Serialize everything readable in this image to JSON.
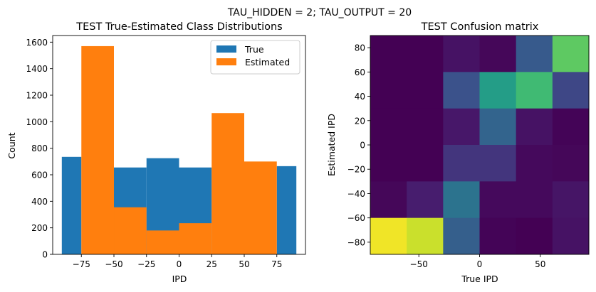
{
  "figure": {
    "suptitle": "TAU_HIDDEN = 2; TAU_OUTPUT = 20"
  },
  "chart_data": [
    {
      "type": "bar",
      "title": "TEST True-Estimated Class Distributions",
      "xlabel": "IPD",
      "ylabel": "Count",
      "xlim": [
        -97,
        97
      ],
      "ylim": [
        0,
        1650
      ],
      "xticks": [
        -75,
        -50,
        -25,
        0,
        25,
        50,
        75
      ],
      "xtick_labels": [
        "−75",
        "−50",
        "−25",
        "0",
        "25",
        "50",
        "75"
      ],
      "yticks": [
        0,
        200,
        400,
        600,
        800,
        1000,
        1200,
        1400,
        1600
      ],
      "ytick_labels": [
        "0",
        "200",
        "400",
        "600",
        "800",
        "1000",
        "1200",
        "1400",
        "1600"
      ],
      "legend_position": "top-right",
      "series": [
        {
          "name": "True",
          "color": "#1f77b4",
          "bin_edges": [
            -90,
            -75,
            -50,
            -25,
            0,
            25,
            50,
            75,
            90
          ],
          "values": [
            735,
            0,
            655,
            725,
            655,
            0,
            0,
            665
          ]
        },
        {
          "name": "Estimated",
          "color": "#ff7f0e",
          "bin_edges": [
            -75,
            -50,
            -25,
            0,
            25,
            50,
            75
          ],
          "values": [
            1570,
            355,
            180,
            235,
            1065,
            700
          ]
        }
      ]
    },
    {
      "type": "heatmap",
      "title": "TEST Confusion matrix",
      "xlabel": "True IPD",
      "ylabel": "Estimated IPD",
      "colormap": "viridis",
      "xlim": [
        -90,
        90
      ],
      "ylim": [
        -90,
        90
      ],
      "xticks": [
        -50,
        0,
        50
      ],
      "xtick_labels": [
        "−50",
        "0",
        "50"
      ],
      "yticks": [
        -80,
        -60,
        -40,
        -20,
        0,
        20,
        40,
        60,
        80
      ],
      "ytick_labels": [
        "−80",
        "−60",
        "−40",
        "−20",
        "0",
        "20",
        "40",
        "60",
        "80"
      ],
      "x_edges": [
        -90,
        -60,
        -30,
        0,
        30,
        60,
        90
      ],
      "y_edges": [
        -90,
        -60,
        -30,
        0,
        30,
        60,
        90
      ],
      "matrix_top_to_bottom": [
        [
          0.0,
          0.0,
          0.06,
          0.02,
          0.28,
          0.75
        ],
        [
          0.0,
          0.0,
          0.25,
          0.55,
          0.68,
          0.22
        ],
        [
          0.0,
          0.0,
          0.08,
          0.32,
          0.06,
          0.01
        ],
        [
          0.0,
          0.0,
          0.17,
          0.17,
          0.03,
          0.02
        ],
        [
          0.02,
          0.1,
          0.38,
          0.03,
          0.03,
          0.07
        ],
        [
          0.98,
          0.92,
          0.3,
          0.01,
          0.0,
          0.06
        ]
      ],
      "cell_values_top_to_bottom": [
        [
          0.0,
          0.0,
          0.06,
          0.02,
          0.28,
          0.75
        ],
        [
          0.0,
          0.0,
          0.25,
          0.55,
          0.68,
          0.22
        ],
        [
          0.0,
          0.0,
          0.08,
          0.32,
          0.06,
          0.01
        ],
        [
          0.0,
          0.0,
          0.17,
          0.17,
          0.03,
          0.02
        ],
        [
          0.02,
          0.1,
          0.38,
          0.03,
          0.03,
          0.07
        ],
        [
          0.98,
          0.92,
          0.3,
          0.01,
          0.0,
          0.06
        ]
      ]
    }
  ]
}
